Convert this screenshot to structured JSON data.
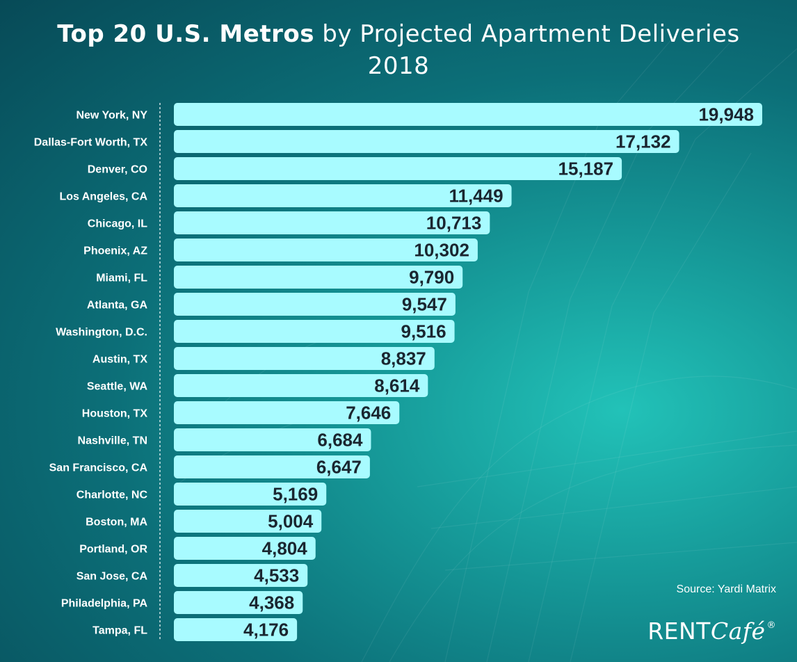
{
  "title": {
    "bold": "Top 20 U.S. Metros",
    "light": "by Projected Apartment Deliveries",
    "year": "2018"
  },
  "source": "Source: Yardi Matrix",
  "logo": {
    "rent": "RENT",
    "cafe": "Café",
    "reg": "®"
  },
  "colors": {
    "bar": "#a8fbff",
    "value_text": "#1a2630",
    "axis": "#ffffff"
  },
  "chart_data": {
    "type": "bar",
    "orientation": "horizontal",
    "title": "Top 20 U.S. Metros by Projected Apartment Deliveries 2018",
    "xlabel": "",
    "ylabel": "",
    "xlim": [
      0,
      20000
    ],
    "categories": [
      "New York, NY",
      "Dallas-Fort Worth, TX",
      "Denver, CO",
      "Los Angeles, CA",
      "Chicago, IL",
      "Phoenix, AZ",
      "Miami, FL",
      "Atlanta, GA",
      "Washington, D.C.",
      "Austin, TX",
      "Seattle, WA",
      "Houston, TX",
      "Nashville, TN",
      "San Francisco, CA",
      "Charlotte, NC",
      "Boston, MA",
      "Portland, OR",
      "San Jose, CA",
      "Philadelphia, PA",
      "Tampa, FL"
    ],
    "values": [
      19948,
      17132,
      15187,
      11449,
      10713,
      10302,
      9790,
      9547,
      9516,
      8837,
      8614,
      7646,
      6684,
      6647,
      5169,
      5004,
      4804,
      4533,
      4368,
      4176
    ],
    "value_labels": [
      "19,948",
      "17,132",
      "15,187",
      "11,449",
      "10,713",
      "10,302",
      "9,790",
      "9,547",
      "9,516",
      "8,837",
      "8,614",
      "7,646",
      "6,684",
      "6,647",
      "5,169",
      "5,004",
      "4,804",
      "4,533",
      "4,368",
      "4,176"
    ]
  }
}
